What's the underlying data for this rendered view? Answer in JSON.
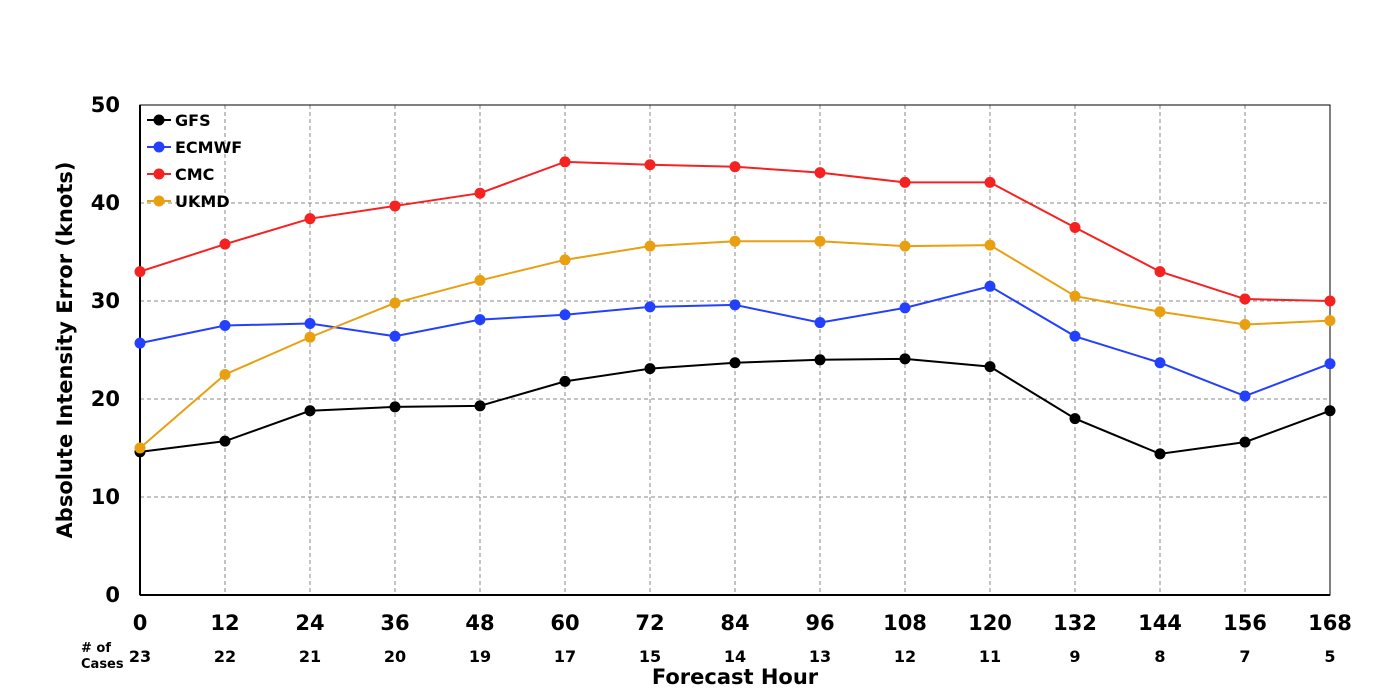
{
  "chart_data": {
    "type": "line",
    "title": "",
    "xlabel": "Forecast Hour",
    "ylabel": "Absolute Intensity Error (knots)",
    "x": [
      0,
      12,
      24,
      36,
      48,
      60,
      72,
      84,
      96,
      108,
      120,
      132,
      144,
      156,
      168
    ],
    "xlim": [
      0,
      168
    ],
    "ylim": [
      0,
      50
    ],
    "yticks": [
      0,
      10,
      20,
      30,
      40,
      50
    ],
    "grid": true,
    "legend_position": "top-left",
    "cases_label_line1": "# of",
    "cases_label_line2": "Cases",
    "cases": [
      23,
      22,
      21,
      20,
      19,
      17,
      15,
      14,
      13,
      12,
      11,
      9,
      8,
      7,
      5
    ],
    "series": [
      {
        "name": "GFS",
        "color": "#000000",
        "values": [
          14.6,
          15.7,
          18.8,
          19.2,
          19.3,
          21.8,
          23.1,
          23.7,
          24.0,
          24.1,
          23.3,
          18.0,
          14.4,
          15.6,
          18.8
        ]
      },
      {
        "name": "ECMWF",
        "color": "#2340ff",
        "values": [
          25.7,
          27.5,
          27.7,
          26.4,
          28.1,
          28.6,
          29.4,
          29.6,
          27.8,
          29.3,
          31.5,
          26.4,
          23.7,
          20.3,
          23.6
        ]
      },
      {
        "name": "CMC",
        "color": "#f52222",
        "values": [
          33.0,
          35.8,
          38.4,
          39.7,
          41.0,
          44.2,
          43.9,
          43.7,
          43.1,
          42.1,
          42.1,
          37.5,
          33.0,
          30.2,
          30.0
        ]
      },
      {
        "name": "UKMD",
        "color": "#e8a010",
        "values": [
          15.0,
          22.5,
          26.3,
          29.8,
          32.1,
          34.2,
          35.6,
          36.1,
          36.1,
          35.6,
          35.7,
          30.5,
          28.9,
          27.6,
          28.0
        ]
      }
    ]
  }
}
